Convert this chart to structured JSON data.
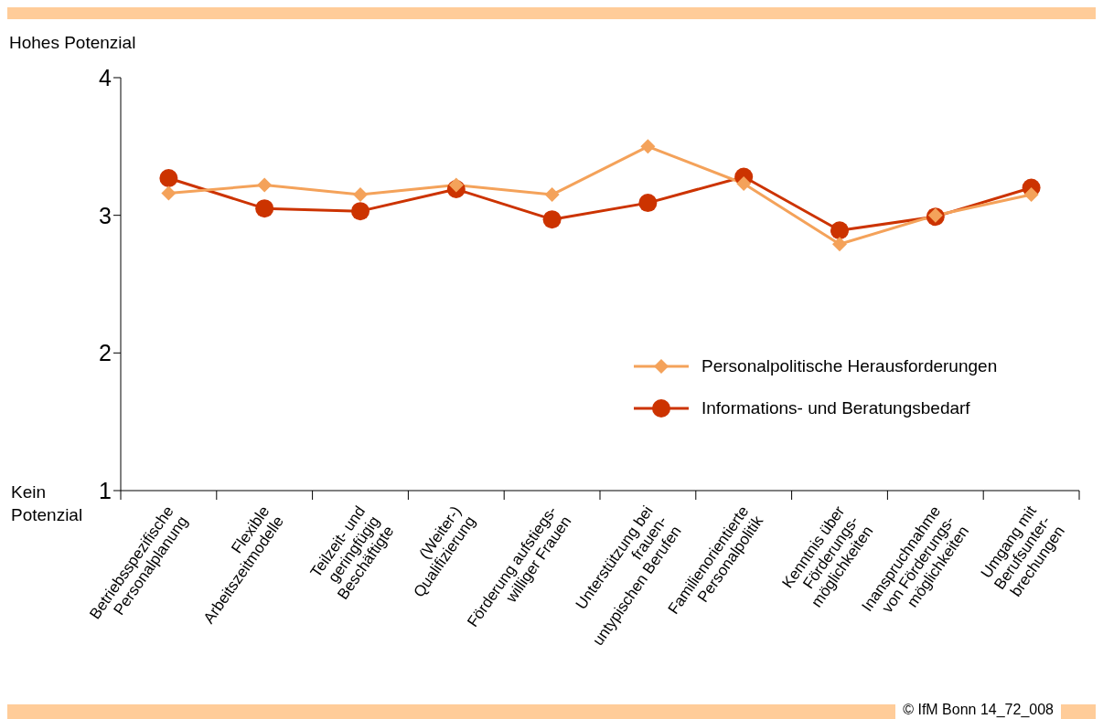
{
  "chart_data": {
    "type": "line",
    "categories": [
      "Betriebsspezifische\nPersonalplanung",
      "Flexible\nArbeitszeitmodelle",
      "Teilzeit- und\ngeringfügig\nBeschäftigte",
      "(Weiter-)\nQualifizierung",
      "Förderung aufstiegs-\nwilliger Frauen",
      "Unterstützung bei\nfrauen-\nuntypischen Berufen",
      "Familienorientierte\nPersonalpolitik",
      "Kenntnis über\nFörderungs-\nmöglichkeiten",
      "Inanspruchnahme\nvon Förderungs-\nmöglichkeiten",
      "Umgang mit\nBerufsunter-\nbrechungen"
    ],
    "series": [
      {
        "name": "Personalpolitische Herausforderungen",
        "color": "#f4a25a",
        "marker": "diamond",
        "values": [
          3.16,
          3.22,
          3.15,
          3.22,
          3.15,
          3.5,
          3.23,
          2.79,
          3.0,
          3.15
        ]
      },
      {
        "name": "Informations- und Beratungsbedarf",
        "color": "#cc3300",
        "marker": "circle",
        "values": [
          3.27,
          3.05,
          3.03,
          3.19,
          2.97,
          3.09,
          3.28,
          2.89,
          2.99,
          3.2
        ]
      }
    ],
    "ylim": [
      1,
      4
    ],
    "yticks": [
      1,
      2,
      3,
      4
    ],
    "grid": false,
    "legend": "right",
    "annotations": [
      "Hohes Potenzial",
      "Kein\nPotenzial",
      "© IfM Bonn 14_72_008"
    ]
  }
}
